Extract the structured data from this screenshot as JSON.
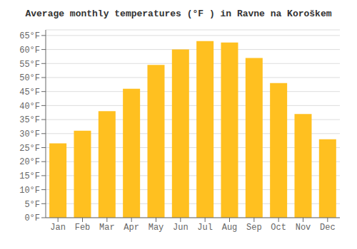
{
  "chart_data": {
    "type": "bar",
    "title": "Average monthly temperatures (°F ) in Ravne na Koroškem",
    "categories": [
      "Jan",
      "Feb",
      "Mar",
      "Apr",
      "May",
      "Jun",
      "Jul",
      "Aug",
      "Sep",
      "Oct",
      "Nov",
      "Dec"
    ],
    "values": [
      26.5,
      31,
      38,
      46,
      54.5,
      60,
      63,
      62.5,
      57,
      48,
      37,
      28
    ],
    "color": "#FFC020",
    "ylim": [
      0,
      67
    ],
    "yticks": [
      {
        "value": 0,
        "label": "0°F"
      },
      {
        "value": 5,
        "label": "5°F"
      },
      {
        "value": 10,
        "label": "10°F"
      },
      {
        "value": 15,
        "label": "15°F"
      },
      {
        "value": 20,
        "label": "20°F"
      },
      {
        "value": 25,
        "label": "25°F"
      },
      {
        "value": 30,
        "label": "30°F"
      },
      {
        "value": 35,
        "label": "35°F"
      },
      {
        "value": 40,
        "label": "40°F"
      },
      {
        "value": 45,
        "label": "45°F"
      },
      {
        "value": 50,
        "label": "50°F"
      },
      {
        "value": 55,
        "label": "55°F"
      },
      {
        "value": 60,
        "label": "60°F"
      },
      {
        "value": 65,
        "label": "65°F"
      }
    ],
    "grid": true
  }
}
